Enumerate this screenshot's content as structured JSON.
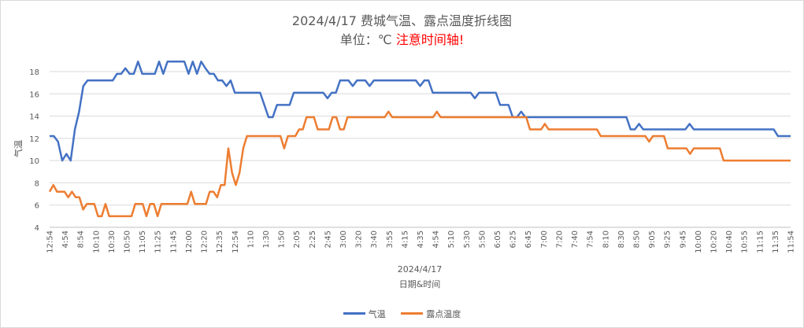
{
  "chart_data": {
    "type": "line",
    "title": "2024/4/17 费城气温、露点温度折线图",
    "subtitle_prefix": "单位：℃ ",
    "subtitle_warning": "注意时间轴!",
    "xlabel_top": "2024/4/17",
    "xlabel": "日期&时间",
    "ylabel": "气温",
    "ylim": [
      4,
      18
    ],
    "yticks": [
      "4",
      "6",
      "8",
      "10",
      "12",
      "14",
      "16",
      "18"
    ],
    "grid": true,
    "legend_position": "bottom",
    "x_tick_labels": [
      "12:54",
      "4:54",
      "8:54",
      "10:10",
      "10:30",
      "10:50",
      "11:05",
      "11:25",
      "11:45",
      "12:00",
      "12:20",
      "12:35",
      "12:54",
      "1:10",
      "1:30",
      "1:50",
      "2:05",
      "2:25",
      "2:45",
      "3:00",
      "3:20",
      "3:40",
      "3:55",
      "4:15",
      "4:35",
      "4:54",
      "5:10",
      "5:30",
      "5:50",
      "6:05",
      "6:25",
      "6:45",
      "7:00",
      "7:20",
      "7:40",
      "7:54",
      "8:10",
      "8:30",
      "8:50",
      "9:05",
      "9:25",
      "9:45",
      "10:00",
      "10:20",
      "10:40",
      "10:55",
      "11:15",
      "11:35",
      "11:54"
    ],
    "series": [
      {
        "name": "气温",
        "color": "#4472c4",
        "values": [
          12.2,
          12.2,
          11.7,
          10.0,
          10.6,
          10.0,
          12.8,
          14.4,
          16.7,
          17.2,
          17.2,
          17.2,
          17.2,
          17.2,
          17.2,
          17.2,
          17.8,
          17.8,
          18.3,
          17.8,
          17.8,
          18.9,
          17.8,
          17.8,
          17.8,
          17.8,
          18.9,
          17.8,
          18.9,
          18.9,
          18.9,
          18.9,
          18.9,
          17.8,
          18.9,
          17.8,
          18.9,
          18.3,
          17.8,
          17.8,
          17.2,
          17.2,
          16.7,
          17.2,
          16.1,
          16.1,
          16.1,
          16.1,
          16.1,
          16.1,
          16.1,
          15.0,
          13.9,
          13.9,
          15.0,
          15.0,
          15.0,
          15.0,
          16.1,
          16.1,
          16.1,
          16.1,
          16.1,
          16.1,
          16.1,
          16.1,
          15.6,
          16.1,
          16.1,
          17.2,
          17.2,
          17.2,
          16.7,
          17.2,
          17.2,
          17.2,
          16.7,
          17.2,
          17.2,
          17.2,
          17.2,
          17.2,
          17.2,
          17.2,
          17.2,
          17.2,
          17.2,
          17.2,
          16.7,
          17.2,
          17.2,
          16.1,
          16.1,
          16.1,
          16.1,
          16.1,
          16.1,
          16.1,
          16.1,
          16.1,
          16.1,
          15.6,
          16.1,
          16.1,
          16.1,
          16.1,
          16.1,
          15.0,
          15.0,
          15.0,
          13.9,
          13.9,
          14.4,
          13.9,
          13.9,
          13.9,
          13.9,
          13.9,
          13.9,
          13.9,
          13.9,
          13.9,
          13.9,
          13.9,
          13.9,
          13.9,
          13.9,
          13.9,
          13.9,
          13.9,
          13.9,
          13.9,
          13.9,
          13.9,
          13.9,
          13.9,
          13.9,
          13.9,
          12.8,
          12.8,
          13.3,
          12.8,
          12.8,
          12.8,
          12.8,
          12.8,
          12.8,
          12.8,
          12.8,
          12.8,
          12.8,
          12.8,
          13.3,
          12.8,
          12.8,
          12.8,
          12.8,
          12.8,
          12.8,
          12.8,
          12.8,
          12.8,
          12.8,
          12.8,
          12.8,
          12.8,
          12.8,
          12.8,
          12.8,
          12.8,
          12.8,
          12.8,
          12.8,
          12.2,
          12.2,
          12.2,
          12.2
        ]
      },
      {
        "name": "露点温度",
        "color": "#ed7d31",
        "values": [
          7.2,
          7.8,
          7.2,
          7.2,
          7.2,
          6.7,
          7.2,
          6.7,
          6.7,
          5.6,
          6.1,
          6.1,
          6.1,
          5.0,
          5.0,
          6.1,
          5.0,
          5.0,
          5.0,
          5.0,
          5.0,
          5.0,
          5.0,
          6.1,
          6.1,
          6.1,
          5.0,
          6.1,
          6.1,
          5.0,
          6.1,
          6.1,
          6.1,
          6.1,
          6.1,
          6.1,
          6.1,
          6.1,
          7.2,
          6.1,
          6.1,
          6.1,
          6.1,
          7.2,
          7.2,
          6.7,
          7.8,
          7.8,
          11.1,
          8.9,
          7.8,
          8.9,
          11.1,
          12.2,
          12.2,
          12.2,
          12.2,
          12.2,
          12.2,
          12.2,
          12.2,
          12.2,
          12.2,
          11.1,
          12.2,
          12.2,
          12.2,
          12.8,
          12.8,
          13.9,
          13.9,
          13.9,
          12.8,
          12.8,
          12.8,
          12.8,
          13.9,
          13.9,
          12.8,
          12.8,
          13.9,
          13.9,
          13.9,
          13.9,
          13.9,
          13.9,
          13.9,
          13.9,
          13.9,
          13.9,
          13.9,
          14.4,
          13.9,
          13.9,
          13.9,
          13.9,
          13.9,
          13.9,
          13.9,
          13.9,
          13.9,
          13.9,
          13.9,
          13.9,
          14.4,
          13.9,
          13.9,
          13.9,
          13.9,
          13.9,
          13.9,
          13.9,
          13.9,
          13.9,
          13.9,
          13.9,
          13.9,
          13.9,
          13.9,
          13.9,
          13.9,
          13.9,
          13.9,
          13.9,
          13.9,
          13.9,
          13.9,
          13.9,
          13.9,
          12.8,
          12.8,
          12.8,
          12.8,
          13.3,
          12.8,
          12.8,
          12.8,
          12.8,
          12.8,
          12.8,
          12.8,
          12.8,
          12.8,
          12.8,
          12.8,
          12.8,
          12.8,
          12.8,
          12.2,
          12.2,
          12.2,
          12.2,
          12.2,
          12.2,
          12.2,
          12.2,
          12.2,
          12.2,
          12.2,
          12.2,
          12.2,
          11.7,
          12.2,
          12.2,
          12.2,
          12.2,
          11.1,
          11.1,
          11.1,
          11.1,
          11.1,
          11.1,
          10.6,
          11.1,
          11.1,
          11.1,
          11.1,
          11.1,
          11.1,
          11.1,
          11.1,
          10.0,
          10.0,
          10.0,
          10.0,
          10.0,
          10.0,
          10.0,
          10.0,
          10.0,
          10.0,
          10.0,
          10.0,
          10.0,
          10.0,
          10.0,
          10.0,
          10.0,
          10.0,
          10.0
        ]
      }
    ]
  }
}
